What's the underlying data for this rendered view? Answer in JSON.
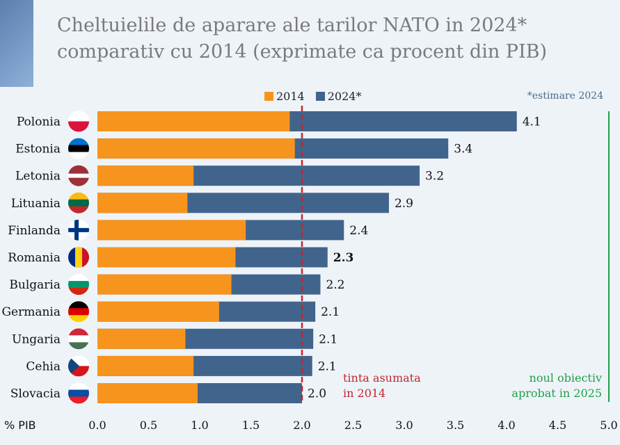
{
  "title_line1": "Cheltuielile de aparare ale tarilor NATO in 2024*",
  "title_line2": "comparativ cu 2014 (exprimate ca procent din PIB)",
  "legend": {
    "label_2014": "2014",
    "label_2024": "2024*"
  },
  "footnote": "*estimare 2024",
  "colors": {
    "c2014": "#f7941d",
    "c2024": "#41648c",
    "target2014": "#c0282d",
    "target2025": "#1fa04a"
  },
  "annotations": {
    "target_2014_line1": "tinta asumata",
    "target_2014_line2": "in 2014",
    "target_2025_line1": "noul obiectiv",
    "target_2025_line2": "aprobat in 2025"
  },
  "chart_data": {
    "type": "bar",
    "orientation": "horizontal",
    "title": "Cheltuielile de aparare ale tarilor NATO in 2024* comparativ cu 2014 (exprimate ca procent din PIB)",
    "xlabel": "% PIB",
    "xlim": [
      0,
      5
    ],
    "ticks": [
      "0.0",
      "0.5",
      "1.0",
      "1.5",
      "2.0",
      "2.5",
      "3.0",
      "3.5",
      "4.0",
      "4.5",
      "5.0"
    ],
    "categories": [
      "Polonia",
      "Estonia",
      "Letonia",
      "Lituania",
      "Finlanda",
      "Romania",
      "Bulgaria",
      "Germania",
      "Ungaria",
      "Cehia",
      "Slovacia"
    ],
    "series": [
      {
        "name": "2014",
        "values": [
          1.88,
          1.93,
          0.94,
          0.88,
          1.45,
          1.35,
          1.31,
          1.19,
          0.86,
          0.94,
          0.98
        ]
      },
      {
        "name": "2024*",
        "values": [
          4.1,
          3.43,
          3.15,
          2.85,
          2.41,
          2.25,
          2.18,
          2.13,
          2.11,
          2.1,
          2.0
        ]
      }
    ],
    "value_labels": [
      "4.1",
      "3.4",
      "3.2",
      "2.9",
      "2.4",
      "2.3",
      "2.2",
      "2.1",
      "2.1",
      "2.1",
      "2.0"
    ],
    "reference_lines": [
      {
        "name": "target_2014",
        "x": 2.0
      },
      {
        "name": "target_2025",
        "x": 5.0
      }
    ]
  }
}
